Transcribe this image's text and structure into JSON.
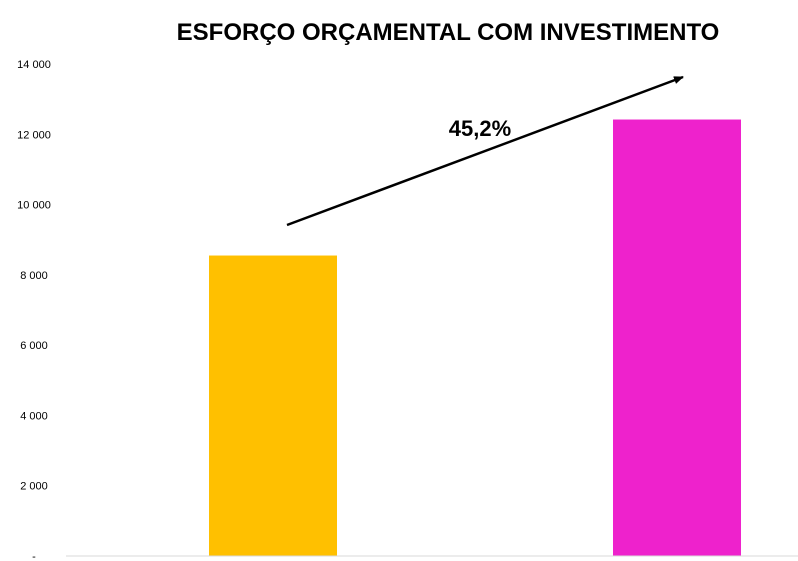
{
  "chart_data": {
    "type": "bar",
    "title": "ESFORÇO ORÇAMENTAL COM INVESTIMENTO",
    "xlabel": "",
    "ylabel": "",
    "categories": [
      "",
      ""
    ],
    "values": [
      8550,
      12420
    ],
    "bar_colors": [
      "#FFC000",
      "#EE22CC"
    ],
    "ylim": [
      0,
      14000
    ],
    "yticks": [
      0,
      2000,
      4000,
      6000,
      8000,
      10000,
      12000,
      14000
    ],
    "ytick_labels": [
      "-",
      "2 000",
      "4 000",
      "6 000",
      "8 000",
      "10 000",
      "12 000",
      "14 000"
    ],
    "grid": false,
    "legend": "none",
    "annotation": {
      "text": "45,2%"
    }
  }
}
